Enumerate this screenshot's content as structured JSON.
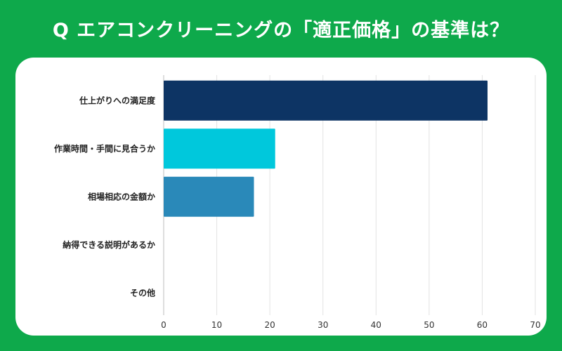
{
  "title": "Q エアコンクリーニングの「適正価格」の基準は？",
  "chart_data": {
    "type": "bar",
    "orientation": "horizontal",
    "title": "Q エアコンクリーニングの「適正価格」の基準は？",
    "categories": [
      "仕上がりへの満足度",
      "作業時間・手間に見合うか",
      "相場相応の金額か",
      "納得できる説明があるか",
      "その他"
    ],
    "values": [
      61,
      21,
      17,
      0,
      0
    ],
    "bar_colors": [
      "#0d3464",
      "#00c8dc",
      "#2a89b9",
      "#2a89b9",
      "#2a89b9"
    ],
    "xlim": [
      0,
      70
    ],
    "xticks": [
      0,
      10,
      20,
      30,
      40,
      50,
      60,
      70
    ],
    "grid": true,
    "xlabel": "",
    "ylabel": ""
  }
}
